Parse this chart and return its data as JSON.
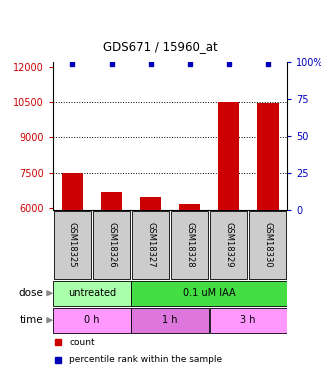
{
  "title": "GDS671 / 15960_at",
  "samples": [
    "GSM18325",
    "GSM18326",
    "GSM18327",
    "GSM18328",
    "GSM18329",
    "GSM18330"
  ],
  "bar_values": [
    7500,
    6700,
    6450,
    6150,
    10500,
    10450
  ],
  "dot_values": [
    99,
    99,
    99,
    99,
    99,
    99
  ],
  "ylim_left": [
    5900,
    12200
  ],
  "ylim_right": [
    0,
    100
  ],
  "yticks_left": [
    6000,
    7500,
    9000,
    10500,
    12000
  ],
  "yticks_right": [
    0,
    25,
    50,
    75,
    100
  ],
  "bar_color": "#cc0000",
  "dot_color": "#0000bb",
  "dose_labels": [
    {
      "label": "untreated",
      "start": 0,
      "end": 2,
      "color": "#aaffaa"
    },
    {
      "label": "0.1 uM IAA",
      "start": 2,
      "end": 6,
      "color": "#44dd44"
    }
  ],
  "time_labels": [
    {
      "label": "0 h",
      "start": 0,
      "end": 2,
      "color": "#ff99ff"
    },
    {
      "label": "1 h",
      "start": 2,
      "end": 4,
      "color": "#dd77dd"
    },
    {
      "label": "3 h",
      "start": 4,
      "end": 6,
      "color": "#ff99ff"
    }
  ],
  "legend_items": [
    {
      "label": "count",
      "color": "#cc0000"
    },
    {
      "label": "percentile rank within the sample",
      "color": "#0000bb"
    }
  ],
  "label_area_color": "#cccccc",
  "bg_color": "#ffffff"
}
